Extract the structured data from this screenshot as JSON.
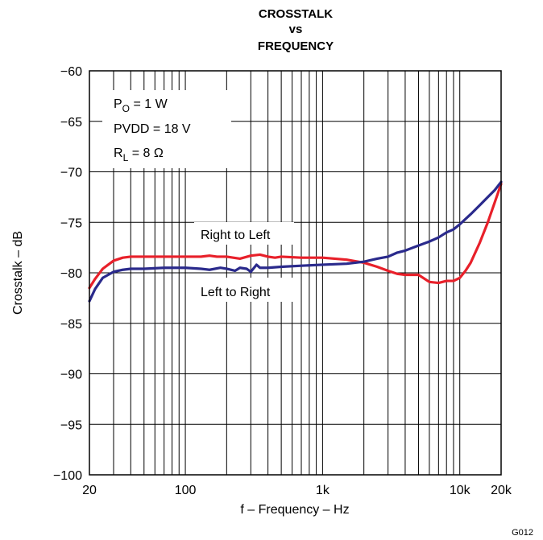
{
  "chart_data": {
    "type": "line",
    "title_lines": [
      "CROSSTALK",
      "vs",
      "FREQUENCY"
    ],
    "xlabel": "f – Frequency – Hz",
    "ylabel": "Crosstalk – dB",
    "x_scale": "log",
    "xlim": [
      20,
      20000
    ],
    "ylim": [
      -100,
      -60
    ],
    "x_ticks": [
      {
        "value": 20,
        "label": "20"
      },
      {
        "value": 100,
        "label": "100"
      },
      {
        "value": 1000,
        "label": "1k"
      },
      {
        "value": 10000,
        "label": "10k"
      },
      {
        "value": 20000,
        "label": "20k"
      }
    ],
    "y_ticks": [
      {
        "value": -60,
        "label": "−60"
      },
      {
        "value": -65,
        "label": "−65"
      },
      {
        "value": -70,
        "label": "−70"
      },
      {
        "value": -75,
        "label": "−75"
      },
      {
        "value": -80,
        "label": "−80"
      },
      {
        "value": -85,
        "label": "−85"
      },
      {
        "value": -90,
        "label": "−90"
      },
      {
        "value": -95,
        "label": "−95"
      },
      {
        "value": -100,
        "label": "−100"
      }
    ],
    "grid": true,
    "conditions": {
      "po_main": "P",
      "po_sub": "O",
      "po_rest": " = 1 W",
      "pvdd": "PVDD = 18 V",
      "rl_main": "R",
      "rl_sub": "L",
      "rl_rest": " = 8 Ω"
    },
    "series": [
      {
        "name": "Right to Left",
        "color": "#e8202a",
        "points": [
          [
            20,
            -81.5
          ],
          [
            22,
            -80.6
          ],
          [
            25,
            -79.6
          ],
          [
            30,
            -78.8
          ],
          [
            35,
            -78.5
          ],
          [
            40,
            -78.4
          ],
          [
            50,
            -78.4
          ],
          [
            70,
            -78.4
          ],
          [
            100,
            -78.4
          ],
          [
            130,
            -78.4
          ],
          [
            150,
            -78.3
          ],
          [
            170,
            -78.4
          ],
          [
            200,
            -78.4
          ],
          [
            250,
            -78.6
          ],
          [
            300,
            -78.3
          ],
          [
            350,
            -78.2
          ],
          [
            400,
            -78.4
          ],
          [
            450,
            -78.5
          ],
          [
            500,
            -78.4
          ],
          [
            700,
            -78.5
          ],
          [
            1000,
            -78.5
          ],
          [
            1500,
            -78.7
          ],
          [
            2000,
            -79.0
          ],
          [
            2500,
            -79.4
          ],
          [
            3000,
            -79.8
          ],
          [
            3500,
            -80.1
          ],
          [
            4000,
            -80.2
          ],
          [
            5000,
            -80.2
          ],
          [
            6000,
            -80.9
          ],
          [
            7000,
            -81.0
          ],
          [
            8000,
            -80.8
          ],
          [
            9000,
            -80.8
          ],
          [
            10000,
            -80.5
          ],
          [
            11000,
            -79.8
          ],
          [
            12000,
            -79.0
          ],
          [
            14000,
            -77.0
          ],
          [
            16000,
            -75.0
          ],
          [
            18000,
            -73.0
          ],
          [
            20000,
            -71.2
          ]
        ]
      },
      {
        "name": "Left to Right",
        "color": "#2a2a8c",
        "points": [
          [
            20,
            -82.8
          ],
          [
            22,
            -81.6
          ],
          [
            25,
            -80.5
          ],
          [
            30,
            -79.9
          ],
          [
            35,
            -79.7
          ],
          [
            40,
            -79.6
          ],
          [
            50,
            -79.6
          ],
          [
            70,
            -79.5
          ],
          [
            100,
            -79.5
          ],
          [
            130,
            -79.6
          ],
          [
            150,
            -79.7
          ],
          [
            180,
            -79.5
          ],
          [
            200,
            -79.6
          ],
          [
            230,
            -79.8
          ],
          [
            250,
            -79.5
          ],
          [
            280,
            -79.6
          ],
          [
            300,
            -79.9
          ],
          [
            330,
            -79.2
          ],
          [
            350,
            -79.5
          ],
          [
            400,
            -79.5
          ],
          [
            500,
            -79.4
          ],
          [
            700,
            -79.3
          ],
          [
            1000,
            -79.2
          ],
          [
            1500,
            -79.1
          ],
          [
            2000,
            -78.9
          ],
          [
            2500,
            -78.6
          ],
          [
            3000,
            -78.4
          ],
          [
            3500,
            -78.0
          ],
          [
            4000,
            -77.8
          ],
          [
            5000,
            -77.3
          ],
          [
            6000,
            -76.9
          ],
          [
            7000,
            -76.5
          ],
          [
            8000,
            -76.0
          ],
          [
            9000,
            -75.7
          ],
          [
            10000,
            -75.2
          ],
          [
            12000,
            -74.2
          ],
          [
            14000,
            -73.3
          ],
          [
            16000,
            -72.5
          ],
          [
            18000,
            -71.8
          ],
          [
            20000,
            -71.0
          ]
        ]
      }
    ],
    "annotations": [
      {
        "text": "Right to Left"
      },
      {
        "text": "Left to Right"
      }
    ],
    "figure_code": "G012"
  }
}
